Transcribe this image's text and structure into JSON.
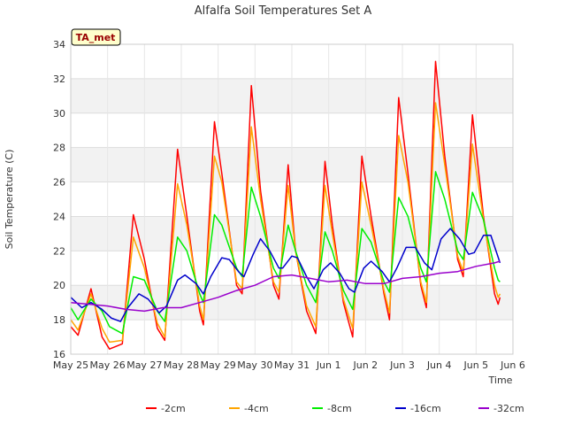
{
  "chart_data": {
    "type": "line",
    "title": "Alfalfa Soil Temperatures Set A",
    "xlabel": "Time",
    "ylabel": "Soil Temperature (C)",
    "badge": "TA_met",
    "ylim": [
      16,
      34
    ],
    "yticks": [
      16,
      18,
      20,
      22,
      24,
      26,
      28,
      30,
      32,
      34
    ],
    "xlim": [
      0,
      12
    ],
    "xticks": [
      {
        "x": 0,
        "label": "May 25"
      },
      {
        "x": 1,
        "label": "May 26"
      },
      {
        "x": 2,
        "label": "May 27"
      },
      {
        "x": 3,
        "label": "May 28"
      },
      {
        "x": 4,
        "label": "May 29"
      },
      {
        "x": 5,
        "label": "May 30"
      },
      {
        "x": 6,
        "label": "May 31"
      },
      {
        "x": 7,
        "label": "Jun 1"
      },
      {
        "x": 8,
        "label": "Jun 2"
      },
      {
        "x": 9,
        "label": "Jun 3"
      },
      {
        "x": 10,
        "label": "Jun 4"
      },
      {
        "x": 11,
        "label": "Jun 5"
      },
      {
        "x": 12,
        "label": "Jun 6"
      }
    ],
    "grid": true,
    "legend": "bottom",
    "series": [
      {
        "name": "-2cm",
        "color": "#ff0000",
        "points": [
          [
            0.0,
            17.6
          ],
          [
            0.2,
            17.1
          ],
          [
            0.55,
            19.8
          ],
          [
            0.85,
            17.0
          ],
          [
            1.05,
            16.3
          ],
          [
            1.4,
            16.6
          ],
          [
            1.7,
            24.1
          ],
          [
            2.0,
            21.5
          ],
          [
            2.35,
            17.5
          ],
          [
            2.55,
            16.8
          ],
          [
            2.9,
            27.9
          ],
          [
            3.15,
            24.0
          ],
          [
            3.5,
            18.5
          ],
          [
            3.6,
            17.7
          ],
          [
            3.9,
            29.5
          ],
          [
            4.1,
            26.5
          ],
          [
            4.5,
            20.0
          ],
          [
            4.65,
            19.5
          ],
          [
            4.9,
            31.6
          ],
          [
            5.15,
            25.5
          ],
          [
            5.5,
            20.0
          ],
          [
            5.65,
            19.2
          ],
          [
            5.9,
            27.0
          ],
          [
            6.1,
            22.0
          ],
          [
            6.4,
            18.5
          ],
          [
            6.65,
            17.2
          ],
          [
            6.9,
            27.2
          ],
          [
            7.1,
            23.5
          ],
          [
            7.4,
            19.0
          ],
          [
            7.65,
            17.0
          ],
          [
            7.9,
            27.5
          ],
          [
            8.15,
            24.0
          ],
          [
            8.5,
            19.5
          ],
          [
            8.65,
            18.0
          ],
          [
            8.9,
            30.9
          ],
          [
            9.15,
            26.5
          ],
          [
            9.5,
            20.0
          ],
          [
            9.65,
            18.7
          ],
          [
            9.9,
            33.0
          ],
          [
            10.15,
            27.5
          ],
          [
            10.5,
            21.5
          ],
          [
            10.65,
            20.5
          ],
          [
            10.9,
            29.9
          ],
          [
            11.2,
            24.0
          ],
          [
            11.5,
            19.5
          ],
          [
            11.6,
            18.9
          ],
          [
            11.65,
            19.3
          ]
        ]
      },
      {
        "name": "-4cm",
        "color": "#ffa500",
        "points": [
          [
            0.0,
            18.0
          ],
          [
            0.2,
            17.4
          ],
          [
            0.55,
            19.5
          ],
          [
            0.85,
            17.5
          ],
          [
            1.05,
            16.7
          ],
          [
            1.4,
            16.8
          ],
          [
            1.7,
            22.8
          ],
          [
            2.0,
            21.0
          ],
          [
            2.35,
            17.8
          ],
          [
            2.55,
            17.0
          ],
          [
            2.9,
            25.9
          ],
          [
            3.15,
            23.5
          ],
          [
            3.5,
            18.8
          ],
          [
            3.6,
            18.0
          ],
          [
            3.9,
            27.5
          ],
          [
            4.1,
            26.0
          ],
          [
            4.5,
            20.2
          ],
          [
            4.65,
            19.8
          ],
          [
            4.9,
            29.2
          ],
          [
            5.15,
            25.0
          ],
          [
            5.5,
            20.2
          ],
          [
            5.65,
            19.6
          ],
          [
            5.9,
            25.8
          ],
          [
            6.1,
            22.0
          ],
          [
            6.4,
            18.8
          ],
          [
            6.65,
            17.6
          ],
          [
            6.9,
            25.8
          ],
          [
            7.1,
            23.0
          ],
          [
            7.4,
            19.2
          ],
          [
            7.65,
            17.5
          ],
          [
            7.9,
            26.0
          ],
          [
            8.15,
            23.5
          ],
          [
            8.5,
            19.7
          ],
          [
            8.65,
            18.4
          ],
          [
            8.9,
            28.7
          ],
          [
            9.15,
            26.0
          ],
          [
            9.5,
            20.2
          ],
          [
            9.65,
            19.0
          ],
          [
            9.9,
            30.6
          ],
          [
            10.15,
            27.0
          ],
          [
            10.5,
            21.7
          ],
          [
            10.65,
            20.8
          ],
          [
            10.9,
            28.2
          ],
          [
            11.2,
            23.8
          ],
          [
            11.5,
            20.0
          ],
          [
            11.6,
            19.3
          ],
          [
            11.65,
            19.5
          ]
        ]
      },
      {
        "name": "-8cm",
        "color": "#00ee00",
        "points": [
          [
            0.0,
            18.7
          ],
          [
            0.2,
            18.0
          ],
          [
            0.55,
            19.2
          ],
          [
            0.85,
            18.5
          ],
          [
            1.05,
            17.6
          ],
          [
            1.4,
            17.2
          ],
          [
            1.7,
            20.5
          ],
          [
            2.0,
            20.3
          ],
          [
            2.35,
            18.5
          ],
          [
            2.55,
            17.9
          ],
          [
            2.9,
            22.8
          ],
          [
            3.15,
            22.0
          ],
          [
            3.5,
            19.5
          ],
          [
            3.6,
            19.0
          ],
          [
            3.9,
            24.1
          ],
          [
            4.1,
            23.5
          ],
          [
            4.5,
            21.0
          ],
          [
            4.65,
            20.5
          ],
          [
            4.9,
            25.7
          ],
          [
            5.15,
            24.0
          ],
          [
            5.5,
            21.0
          ],
          [
            5.65,
            20.4
          ],
          [
            5.9,
            23.5
          ],
          [
            6.1,
            22.0
          ],
          [
            6.4,
            20.0
          ],
          [
            6.65,
            19.0
          ],
          [
            6.9,
            23.1
          ],
          [
            7.1,
            22.0
          ],
          [
            7.4,
            19.7
          ],
          [
            7.65,
            18.6
          ],
          [
            7.9,
            23.3
          ],
          [
            8.15,
            22.5
          ],
          [
            8.5,
            20.2
          ],
          [
            8.65,
            19.6
          ],
          [
            8.9,
            25.1
          ],
          [
            9.15,
            24.0
          ],
          [
            9.5,
            21.0
          ],
          [
            9.65,
            20.2
          ],
          [
            9.9,
            26.6
          ],
          [
            10.15,
            25.0
          ],
          [
            10.5,
            22.0
          ],
          [
            10.65,
            21.5
          ],
          [
            10.9,
            25.4
          ],
          [
            11.2,
            23.8
          ],
          [
            11.5,
            21.0
          ],
          [
            11.6,
            20.3
          ],
          [
            11.65,
            20.2
          ]
        ]
      },
      {
        "name": "-16cm",
        "color": "#0000cc",
        "points": [
          [
            0.0,
            19.3
          ],
          [
            0.3,
            18.7
          ],
          [
            0.55,
            19.0
          ],
          [
            0.85,
            18.6
          ],
          [
            1.1,
            18.1
          ],
          [
            1.35,
            17.9
          ],
          [
            1.55,
            18.7
          ],
          [
            1.85,
            19.5
          ],
          [
            2.1,
            19.2
          ],
          [
            2.4,
            18.4
          ],
          [
            2.6,
            18.8
          ],
          [
            2.9,
            20.3
          ],
          [
            3.1,
            20.6
          ],
          [
            3.4,
            20.1
          ],
          [
            3.6,
            19.5
          ],
          [
            3.8,
            20.5
          ],
          [
            4.1,
            21.6
          ],
          [
            4.3,
            21.5
          ],
          [
            4.55,
            20.8
          ],
          [
            4.7,
            20.5
          ],
          [
            4.95,
            21.8
          ],
          [
            5.15,
            22.7
          ],
          [
            5.4,
            22.0
          ],
          [
            5.65,
            21.0
          ],
          [
            5.75,
            21.0
          ],
          [
            6.0,
            21.7
          ],
          [
            6.15,
            21.6
          ],
          [
            6.4,
            20.5
          ],
          [
            6.6,
            19.8
          ],
          [
            6.85,
            20.9
          ],
          [
            7.05,
            21.3
          ],
          [
            7.3,
            20.7
          ],
          [
            7.55,
            19.8
          ],
          [
            7.7,
            19.6
          ],
          [
            7.95,
            21.0
          ],
          [
            8.15,
            21.4
          ],
          [
            8.45,
            20.8
          ],
          [
            8.65,
            20.2
          ],
          [
            8.85,
            21.0
          ],
          [
            9.1,
            22.2
          ],
          [
            9.35,
            22.2
          ],
          [
            9.6,
            21.3
          ],
          [
            9.8,
            20.9
          ],
          [
            10.05,
            22.7
          ],
          [
            10.3,
            23.3
          ],
          [
            10.55,
            22.7
          ],
          [
            10.8,
            21.8
          ],
          [
            10.95,
            21.9
          ],
          [
            11.2,
            22.9
          ],
          [
            11.4,
            22.9
          ],
          [
            11.65,
            21.3
          ]
        ]
      },
      {
        "name": "-32cm",
        "color": "#9900cc",
        "points": [
          [
            0.0,
            19.0
          ],
          [
            0.5,
            18.9
          ],
          [
            1.0,
            18.8
          ],
          [
            1.5,
            18.6
          ],
          [
            2.0,
            18.5
          ],
          [
            2.5,
            18.7
          ],
          [
            3.0,
            18.7
          ],
          [
            3.5,
            19.0
          ],
          [
            4.0,
            19.3
          ],
          [
            4.5,
            19.7
          ],
          [
            5.0,
            20.0
          ],
          [
            5.5,
            20.5
          ],
          [
            6.0,
            20.6
          ],
          [
            6.5,
            20.4
          ],
          [
            7.0,
            20.2
          ],
          [
            7.5,
            20.3
          ],
          [
            8.0,
            20.1
          ],
          [
            8.5,
            20.1
          ],
          [
            9.0,
            20.4
          ],
          [
            9.5,
            20.5
          ],
          [
            10.0,
            20.7
          ],
          [
            10.5,
            20.8
          ],
          [
            11.0,
            21.1
          ],
          [
            11.5,
            21.3
          ],
          [
            11.65,
            21.4
          ]
        ]
      }
    ]
  }
}
